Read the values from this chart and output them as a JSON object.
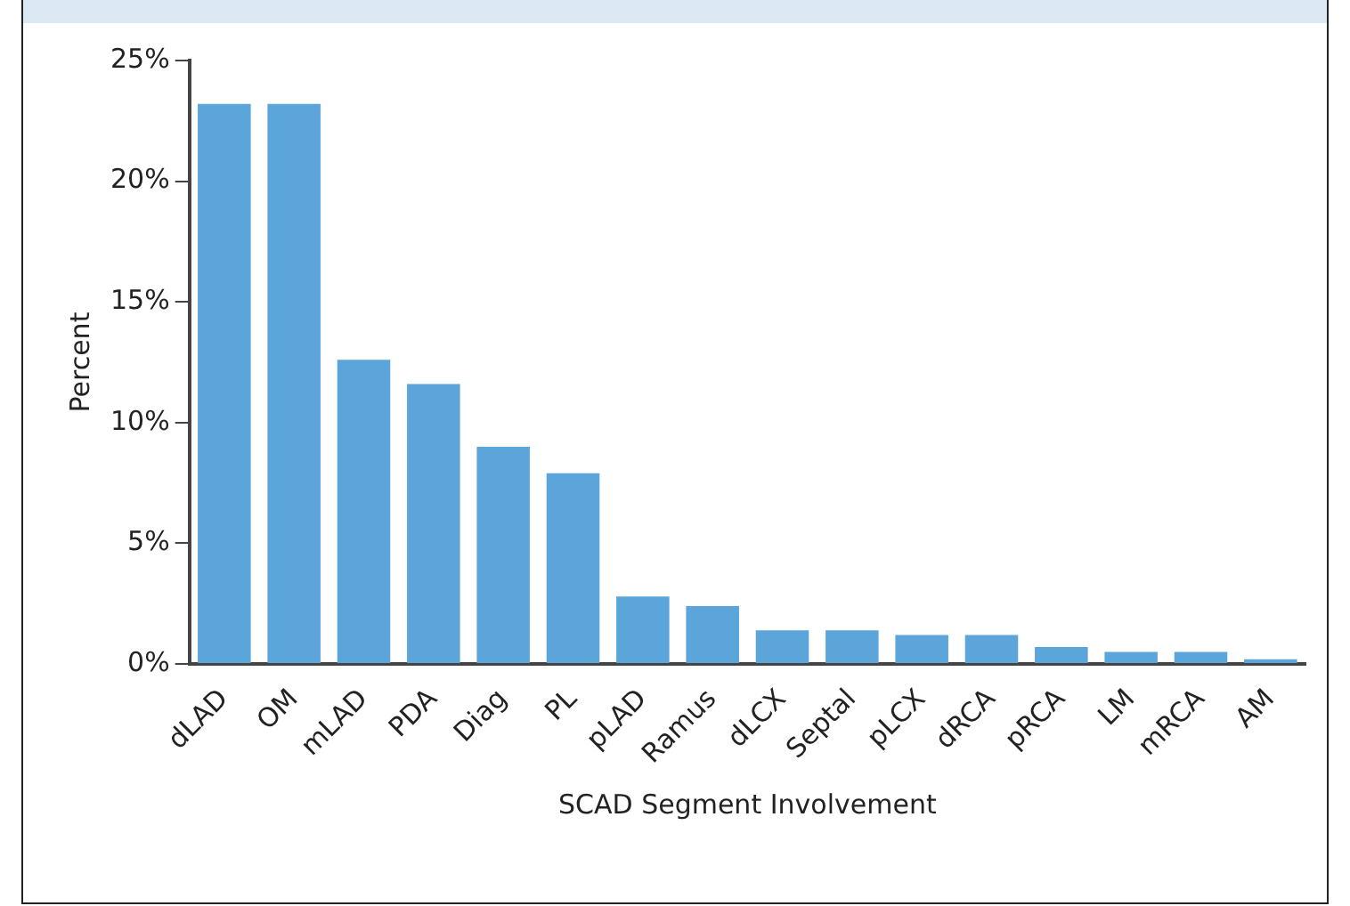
{
  "chart_data": {
    "type": "bar",
    "xlabel": "SCAD Segment Involvement",
    "ylabel": "Percent",
    "categories": [
      "dLAD",
      "OM",
      "mLAD",
      "PDA",
      "Diag",
      "PL",
      "pLAD",
      "Ramus",
      "dLCX",
      "Septal",
      "pLCX",
      "dRCA",
      "pRCA",
      "LM",
      "mRCA",
      "AM"
    ],
    "values": [
      23.2,
      23.2,
      12.6,
      11.6,
      9.0,
      7.9,
      2.8,
      2.4,
      1.4,
      1.4,
      1.2,
      1.2,
      0.7,
      0.5,
      0.5,
      0.2
    ],
    "color": "#5ba5da",
    "ylim": [
      0,
      25
    ],
    "yticks": [
      {
        "value": 0,
        "label": "0%"
      },
      {
        "value": 5,
        "label": "5%"
      },
      {
        "value": 10,
        "label": "10%"
      },
      {
        "value": 15,
        "label": "15%"
      },
      {
        "value": 20,
        "label": "20%"
      },
      {
        "value": 25,
        "label": "25%"
      }
    ],
    "grid": false,
    "legend": false
  }
}
